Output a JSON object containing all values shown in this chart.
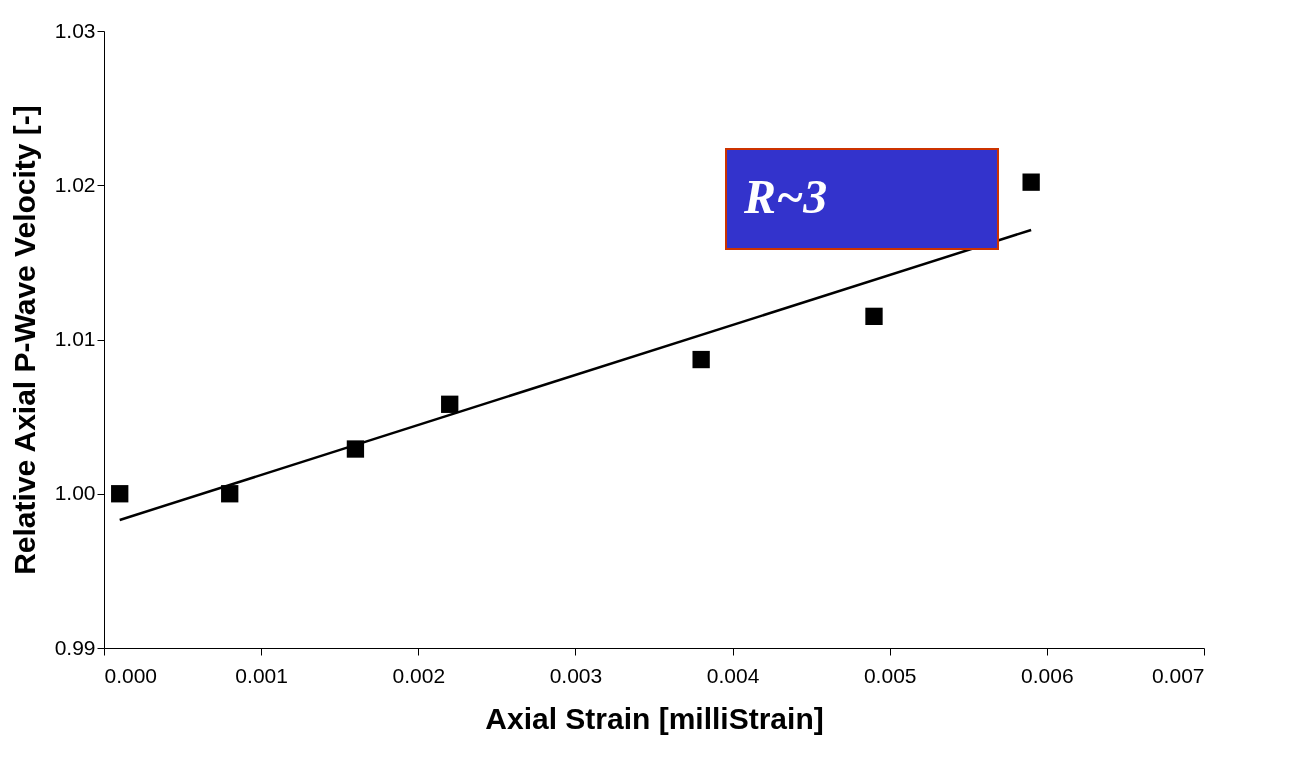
{
  "chart_data": {
    "type": "scatter",
    "xlabel": "Axial Strain [milliStrain]",
    "ylabel": "Relative Axial P-Wave Velocity [-]",
    "series": [
      {
        "type": "scatter",
        "color": "#000000",
        "marker": "square",
        "x": [
          0.0001,
          0.0008,
          0.0016,
          0.0022,
          0.0038,
          0.0049,
          0.0059
        ],
        "values": [
          1.0,
          1.0,
          1.0029,
          1.0058,
          1.0087,
          1.0115,
          1.0202
        ]
      },
      {
        "type": "line",
        "color": "#000000",
        "x": [
          0.0001,
          0.0059
        ],
        "values": [
          0.9983,
          1.0171
        ]
      }
    ],
    "annotations": [
      "R~3"
    ],
    "xlim": [
      0,
      0.007
    ],
    "xticks": [
      {
        "value": 0,
        "label": "0.000"
      },
      0.001,
      0.002,
      0.003,
      0.004,
      0.005,
      0.006,
      0.007
    ],
    "ylim": [
      0.99,
      1.03
    ],
    "yticks": [
      0.99,
      {
        "value": 1,
        "label": "1.00"
      },
      1.01,
      1.02,
      1.03
    ],
    "grid": false,
    "legend": false
  }
}
